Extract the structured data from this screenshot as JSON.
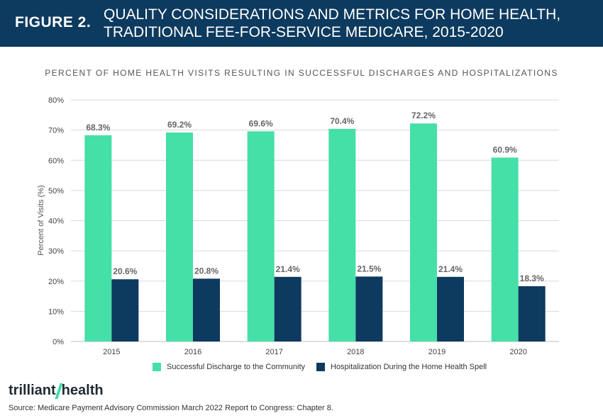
{
  "header": {
    "figure_label": "FIGURE 2.",
    "title_line1": "QUALITY CONSIDERATIONS AND METRICS FOR HOME HEALTH,",
    "title_line2": "TRADITIONAL FEE-FOR-SERVICE MEDICARE, 2015-2020"
  },
  "colors": {
    "header_bg": "#0d3a5f",
    "series1": "#45dfa8",
    "series2": "#0d3a5f",
    "grid": "#d9d9d9"
  },
  "chart_data": {
    "type": "bar",
    "title": "PERCENT OF HOME HEALTH VISITS RESULTING IN SUCCESSFUL DISCHARGES AND HOSPITALIZATIONS",
    "ylabel": "Percent of Visits (%)",
    "xlabel": "",
    "ylim": [
      0,
      80
    ],
    "yticks": [
      "0%",
      "10%",
      "20%",
      "30%",
      "40%",
      "50%",
      "60%",
      "70%",
      "80%"
    ],
    "grid": true,
    "legend_position": "bottom",
    "categories": [
      "2015",
      "2016",
      "2017",
      "2018",
      "2019",
      "2020"
    ],
    "series": [
      {
        "name": "Successful Discharge to the Community",
        "values": [
          68.3,
          69.2,
          69.6,
          70.4,
          72.2,
          60.9
        ],
        "labels": [
          "68.3%",
          "69.2%",
          "69.6%",
          "70.4%",
          "72.2%",
          "60.9%"
        ]
      },
      {
        "name": "Hospitalization During the Home Health Spell",
        "values": [
          20.6,
          20.8,
          21.4,
          21.5,
          21.4,
          18.3
        ],
        "labels": [
          "20.6%",
          "20.8%",
          "21.4%",
          "21.5%",
          "21.4%",
          "18.3%"
        ]
      }
    ]
  },
  "logo": {
    "part1": "trilliant",
    "part2": "health"
  },
  "source": "Source: Medicare Payment Advisory Commission March 2022 Report to Congress: Chapter 8."
}
